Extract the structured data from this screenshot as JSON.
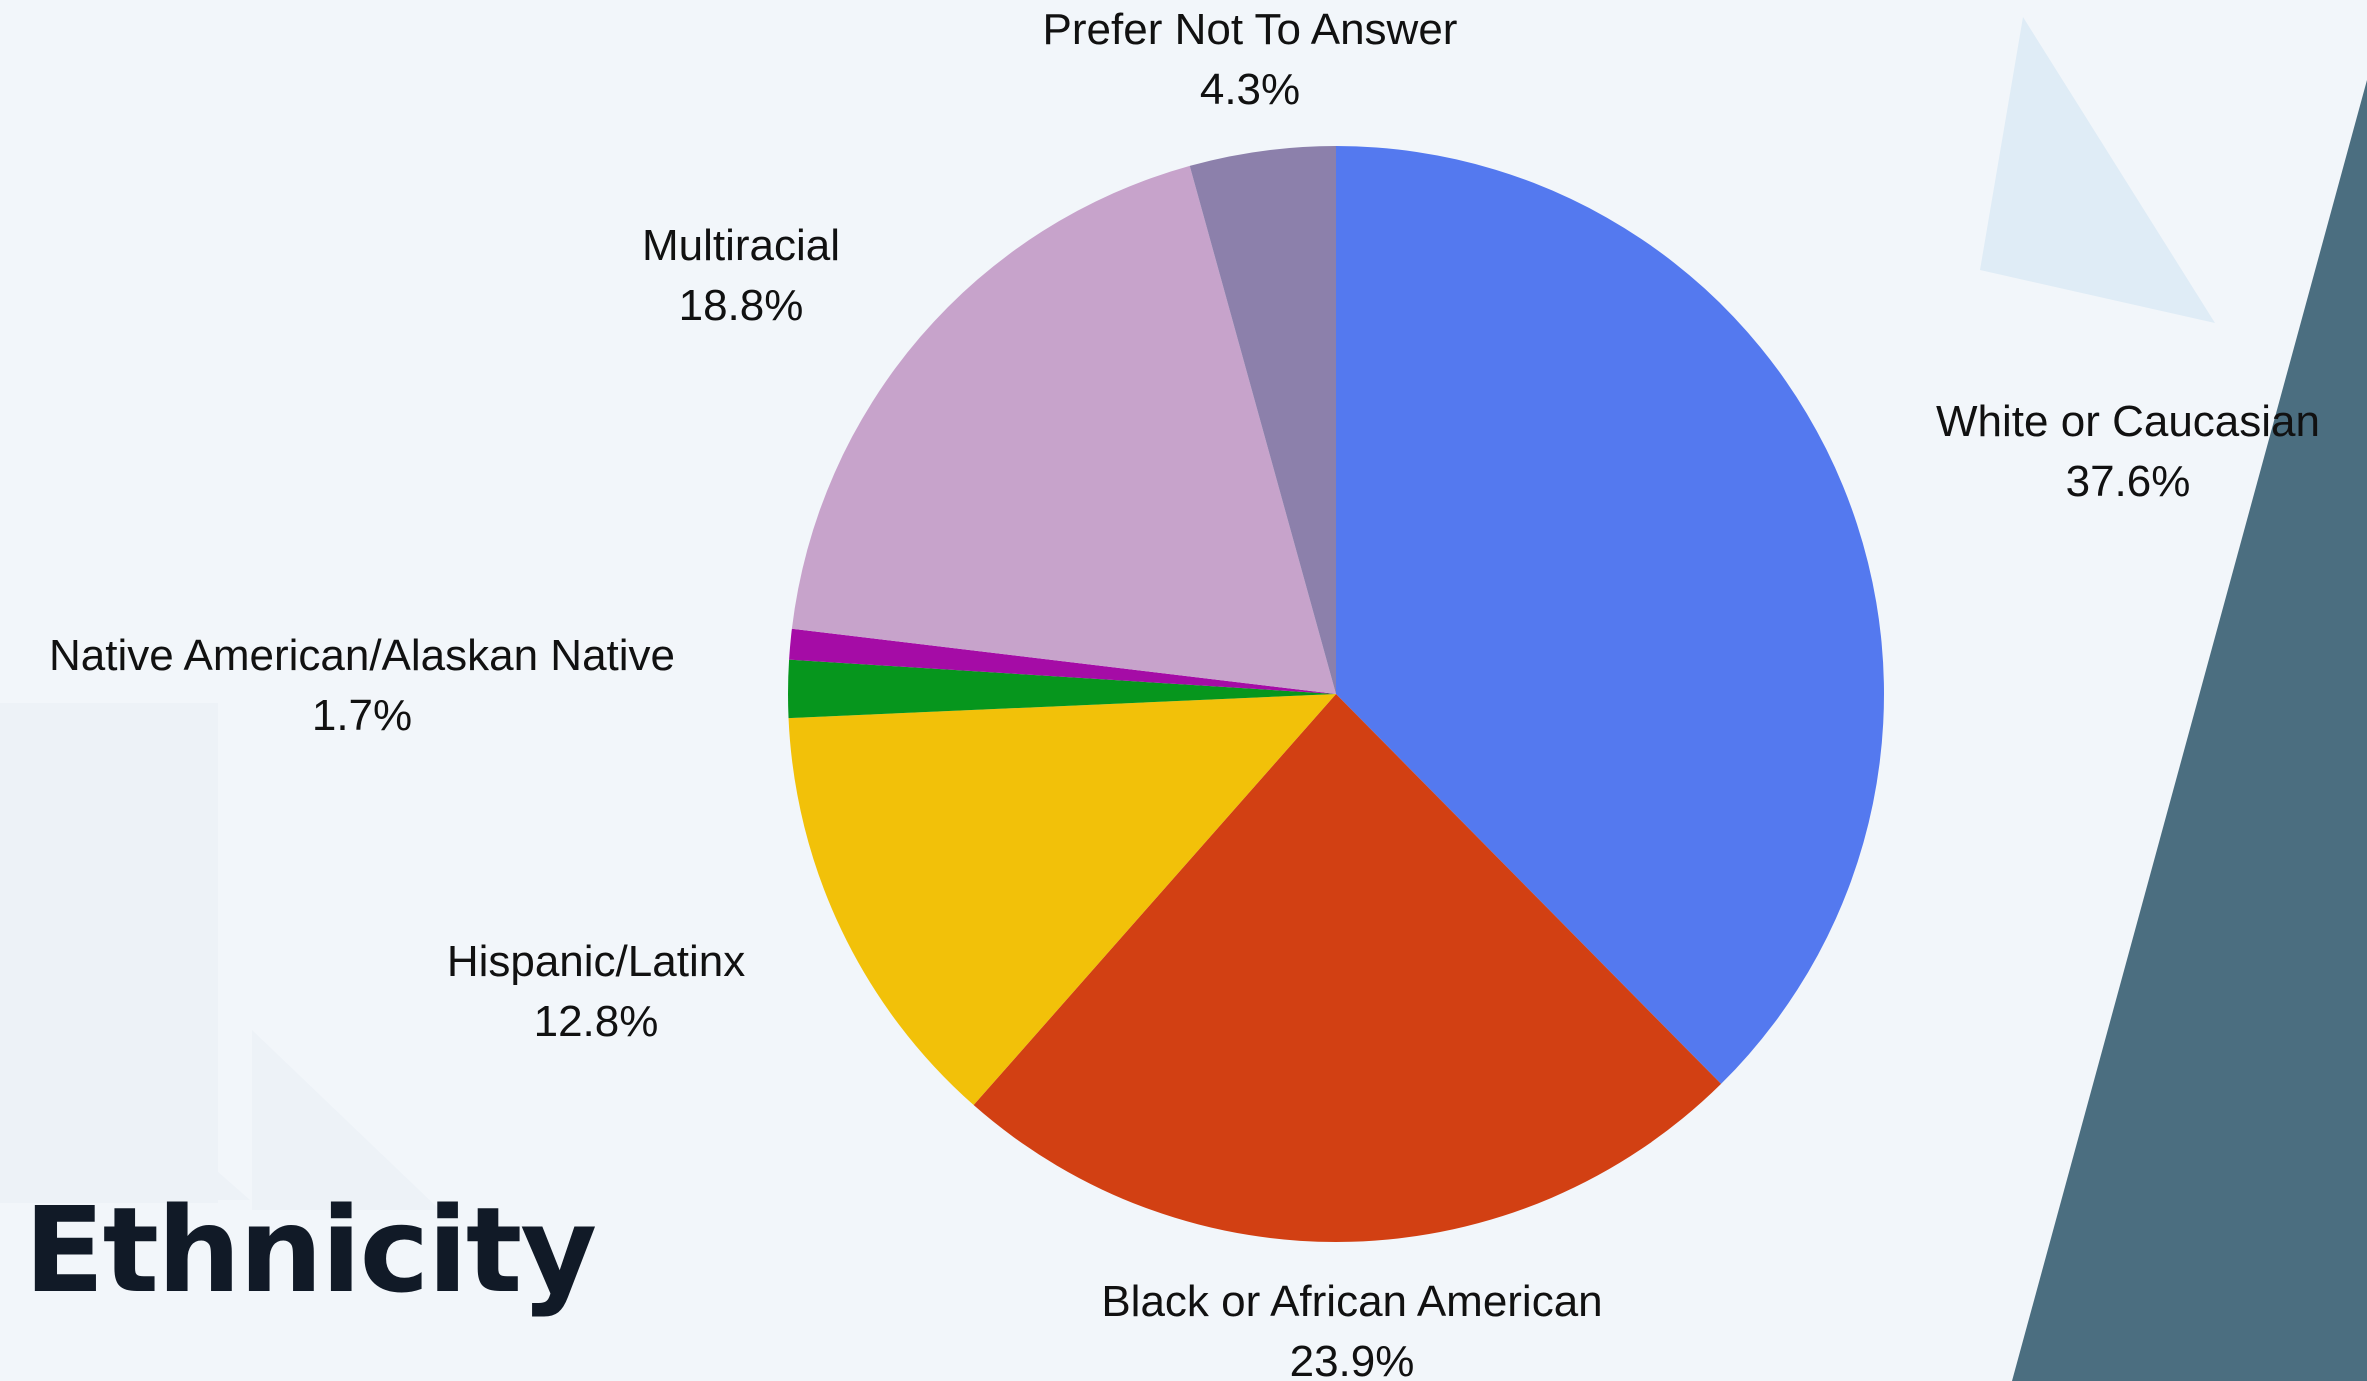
{
  "chart_data": {
    "type": "pie",
    "title": "Ethnicity",
    "start": "top",
    "direction": "clockwise",
    "slices": [
      {
        "label": "White or Caucasian",
        "value": 37.6,
        "value_label": "37.6%",
        "color": "#5479ef"
      },
      {
        "label": "Black or African American",
        "value": 23.9,
        "value_label": "23.9%",
        "color": "#d24013"
      },
      {
        "label": "Hispanic/Latinx",
        "value": 12.8,
        "value_label": "12.8%",
        "color": "#f2c109"
      },
      {
        "label": "Native American/Alaskan Native",
        "value": 1.7,
        "value_label": "1.7%",
        "color": "#06961d"
      },
      {
        "label": "",
        "value": 0.9,
        "value_label": "",
        "color": "#a50ca6"
      },
      {
        "label": "Multiracial",
        "value": 18.8,
        "value_label": "18.8%",
        "color": "#c7a3cb"
      },
      {
        "label": "Prefer Not To Answer",
        "value": 4.3,
        "value_label": "4.3%",
        "color": "#8c80ab"
      }
    ]
  },
  "theme": {
    "background": "#f2f6fa",
    "accent_dark": "#4b6e80",
    "accent_light": "#dfecf6",
    "title_color": "#111a27"
  }
}
